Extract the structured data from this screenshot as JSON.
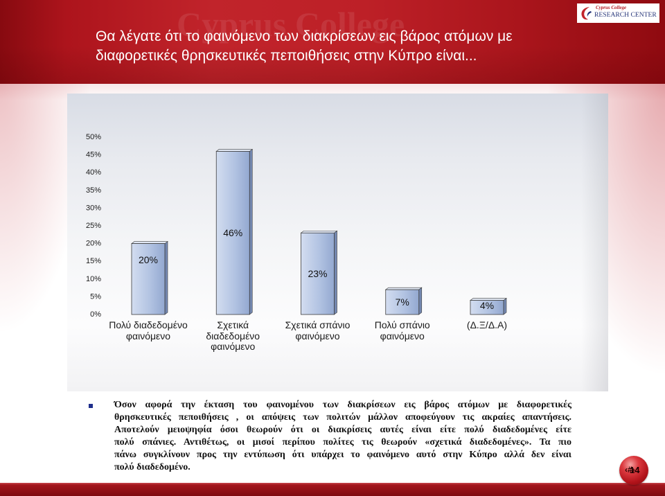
{
  "slide": {
    "title": "Θα λέγατε ότι το φαινόμενο των διακρίσεων εις βάρος ατόμων με διαφορετικές θρησκευτικές πεποιθήσεις στην Κύπρο είναι...",
    "page_number": "14",
    "page_number_placeholder": "‹#›"
  },
  "banner": {
    "watermark": "Cyprus College"
  },
  "logo": {
    "icon": "cyprus-college-swoosh-icon",
    "org": "Cyprus College",
    "name": "RESEARCH CENTER"
  },
  "chart_data": {
    "type": "bar",
    "categories": [
      "Πολύ διαδεδομένο φαινόμενο",
      "Σχετικά διαδεδομένο φαινόμενο",
      "Σχετικά σπάνιο φαινόμενο",
      "Πολύ σπάνιο φαινόμενο",
      "(Δ.Ξ/Δ.Α)"
    ],
    "values": [
      20,
      46,
      23,
      7,
      4
    ],
    "data_labels": [
      "20%",
      "46%",
      "23%",
      "7%",
      "4%"
    ],
    "y_ticks": [
      {
        "value": 0,
        "label": "0%"
      },
      {
        "value": 5,
        "label": "5%"
      },
      {
        "value": 10,
        "label": "10%"
      },
      {
        "value": 15,
        "label": "15%"
      },
      {
        "value": 20,
        "label": "20%"
      },
      {
        "value": 25,
        "label": "25%"
      },
      {
        "value": 30,
        "label": "30%"
      },
      {
        "value": 35,
        "label": "35%"
      },
      {
        "value": 40,
        "label": "40%"
      },
      {
        "value": 45,
        "label": "45%"
      },
      {
        "value": 50,
        "label": "50%"
      }
    ],
    "ylim": [
      0,
      50
    ],
    "grid": false,
    "legend": false
  },
  "body": {
    "bullet_icon": "square-bullet-icon",
    "lines": [
      "Όσον αφορά την έκταση του φαινομένου των διακρίσεων εις βάρος ατόμων με διαφορετικές",
      "θρησκευτικές πεποιθήσεις , οι απόψεις των πολιτών μάλλον αποφεύγουν τις ακραίες απαντήσεις.",
      "Αποτελούν μειοψηφία όσοι θεωρούν ότι οι διακρίσεις αυτές είναι είτε πολύ διαδεδομένες είτε",
      "πολύ σπάνιες. Αντιθέτως, οι μισοί περίπου πολίτες τις θεωρούν «σχετικά διαδεδομένες». Τα πιο",
      "πάνω συγκλίνουν προς την εντύπωση ότι υπάρχει το φαινόμενο αυτό στην Κύπρο αλλά δεν είναι",
      "πολύ διαδεδομένο."
    ]
  },
  "colors": {
    "banner_red": "#bd2027",
    "bar_fill": "#b2c3e2",
    "bar_side": "#7488b1",
    "bullet_blue": "#1f2f8c",
    "title_text": "#ffffff"
  }
}
